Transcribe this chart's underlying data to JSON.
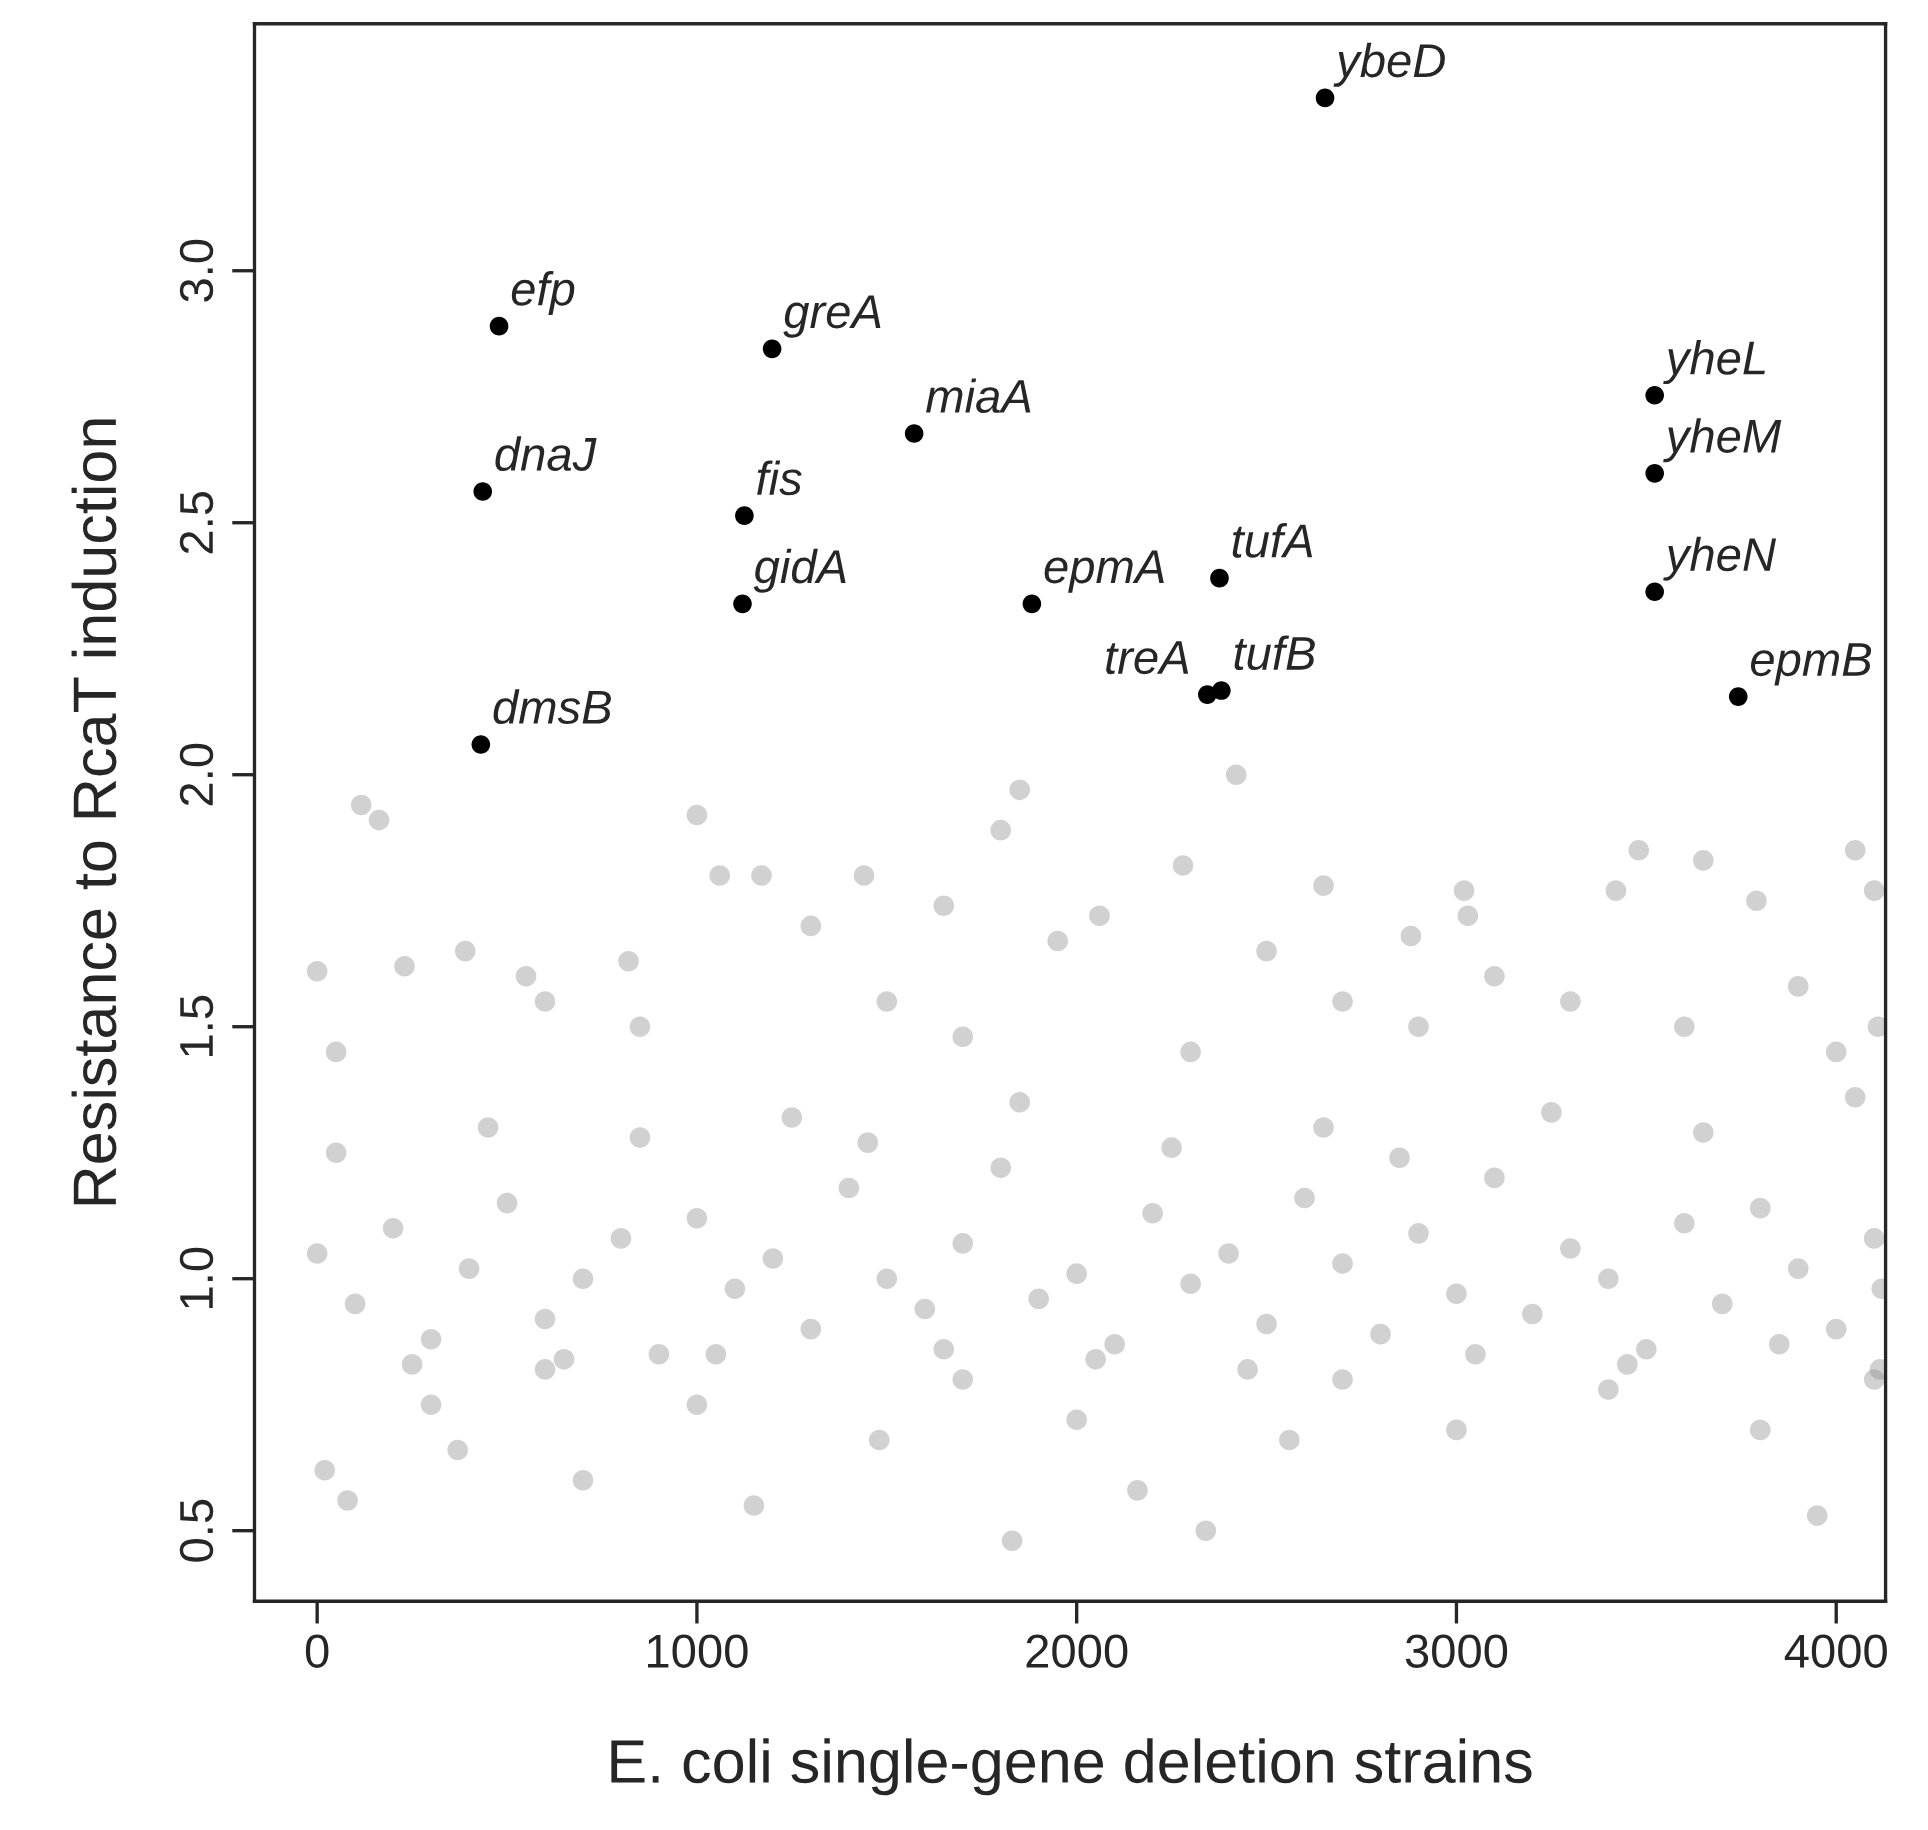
{
  "chart_data": {
    "type": "scatter",
    "xlabel": "E. coli single-gene deletion strains",
    "ylabel": "Resistance to RcaT induction",
    "xlim": [
      -165,
      4130
    ],
    "ylim": [
      0.36,
      3.49
    ],
    "xticks": [
      0,
      1000,
      2000,
      3000,
      4000
    ],
    "yticks": [
      {
        "value": 0.5,
        "label": "0.5"
      },
      {
        "value": 1.0,
        "label": "1.0"
      },
      {
        "value": 1.5,
        "label": "1.5"
      },
      {
        "value": 2.0,
        "label": "2.0"
      },
      {
        "value": 2.5,
        "label": "2.5"
      },
      {
        "value": 3.0,
        "label": "3.0"
      }
    ],
    "grid": false,
    "legend": false,
    "marker": "circle",
    "series": [
      {
        "color": "#8c8c8c",
        "x": [
          116,
          163,
          1000,
          1850,
          1800,
          2420,
          2280,
          2650,
          3420,
          3650,
          3790,
          4050,
          1440,
          1170,
          1060,
          3020,
          3030,
          2880,
          2060,
          1650,
          1300,
          390,
          230,
          0,
          3480,
          3100,
          820,
          4100,
          550,
          2500,
          1950,
          600,
          2700,
          3300,
          3900,
          4110,
          1500,
          50,
          850,
          1700,
          2300,
          2900,
          3600,
          4000,
          20,
          80,
          1830,
          2340,
          3950,
          1150,
          2160,
          700,
          370,
          1480,
          2560,
          3800,
          4100,
          3000,
          2000,
          300,
          1000,
          3400,
          1700,
          2700,
          600,
          0,
          100,
          200,
          300,
          400,
          500,
          600,
          700,
          800,
          900,
          1000,
          1100,
          1200,
          1300,
          1400,
          1500,
          1600,
          1700,
          1800,
          1900,
          2000,
          2100,
          2200,
          2300,
          2400,
          2500,
          2600,
          2700,
          2800,
          2900,
          3000,
          3100,
          3200,
          3300,
          3400,
          3500,
          3600,
          3700,
          3800,
          3900,
          4000,
          4100,
          4120,
          50,
          250,
          450,
          650,
          850,
          1050,
          1250,
          1450,
          1650,
          1850,
          2050,
          2250,
          2450,
          2650,
          2850,
          3050,
          3250,
          3450,
          3650,
          3850,
          4050,
          4115
        ],
        "values": [
          1.94,
          1.91,
          1.92,
          1.97,
          1.89,
          2.0,
          1.82,
          1.78,
          1.77,
          1.83,
          1.75,
          1.85,
          1.8,
          1.8,
          1.8,
          1.77,
          1.72,
          1.68,
          1.72,
          1.74,
          1.7,
          1.65,
          1.62,
          1.61,
          1.85,
          1.6,
          1.63,
          1.77,
          1.6,
          1.65,
          1.67,
          1.55,
          1.55,
          1.55,
          1.58,
          1.5,
          1.55,
          1.45,
          1.5,
          1.48,
          1.45,
          1.5,
          1.5,
          1.45,
          0.62,
          0.56,
          0.48,
          0.5,
          0.53,
          0.55,
          0.58,
          0.6,
          0.66,
          0.68,
          0.68,
          0.7,
          0.8,
          0.7,
          0.72,
          0.75,
          0.75,
          0.78,
          0.8,
          0.8,
          0.82,
          1.05,
          0.95,
          1.1,
          0.88,
          1.02,
          1.15,
          0.92,
          1.0,
          1.08,
          0.85,
          1.12,
          0.98,
          1.04,
          0.9,
          1.18,
          1.0,
          0.94,
          1.07,
          1.22,
          0.96,
          1.01,
          0.87,
          1.13,
          0.99,
          1.05,
          0.91,
          1.16,
          1.03,
          0.89,
          1.09,
          0.97,
          1.2,
          0.93,
          1.06,
          1.0,
          0.86,
          1.11,
          0.95,
          1.14,
          1.02,
          0.9,
          1.08,
          0.98,
          1.25,
          0.83,
          1.3,
          0.84,
          1.28,
          0.85,
          1.32,
          1.27,
          0.86,
          1.35,
          0.84,
          1.26,
          0.82,
          1.3,
          1.24,
          0.85,
          1.33,
          0.83,
          1.29,
          0.87,
          1.36,
          0.82
        ]
      },
      {
        "color": "#000000",
        "x": [
          479,
          1198,
          2654,
          1572,
          436,
          1125,
          1120,
          1882,
          2376,
          2344,
          2381,
          431,
          3522,
          3522,
          3522,
          3742
        ],
        "values": [
          2.89,
          2.845,
          3.343,
          2.677,
          2.562,
          2.514,
          2.339,
          2.339,
          2.39,
          2.159,
          2.167,
          2.06,
          2.753,
          2.598,
          2.363,
          2.155
        ]
      }
    ],
    "annotations": [
      {
        "text": "efp",
        "x": 479,
        "y": 2.89
      },
      {
        "text": "greA",
        "x": 1198,
        "y": 2.845
      },
      {
        "text": "ybeD",
        "x": 2654,
        "y": 3.343
      },
      {
        "text": "miaA",
        "x": 1572,
        "y": 2.677
      },
      {
        "text": "dnaJ",
        "x": 436,
        "y": 2.562
      },
      {
        "text": "fis",
        "x": 1125,
        "y": 2.514
      },
      {
        "text": "gidA",
        "x": 1120,
        "y": 2.339
      },
      {
        "text": "epmA",
        "x": 1882,
        "y": 2.339
      },
      {
        "text": "tufA",
        "x": 2376,
        "y": 2.39
      },
      {
        "text": "treA",
        "x": 2344,
        "y": 2.159
      },
      {
        "text": "tufB",
        "x": 2381,
        "y": 2.167
      },
      {
        "text": "dmsB",
        "x": 431,
        "y": 2.06
      },
      {
        "text": "yheL",
        "x": 3522,
        "y": 2.753
      },
      {
        "text": "yheM",
        "x": 3522,
        "y": 2.598
      },
      {
        "text": "yheN",
        "x": 3522,
        "y": 2.363
      },
      {
        "text": "epmB",
        "x": 3742,
        "y": 2.155
      }
    ]
  }
}
